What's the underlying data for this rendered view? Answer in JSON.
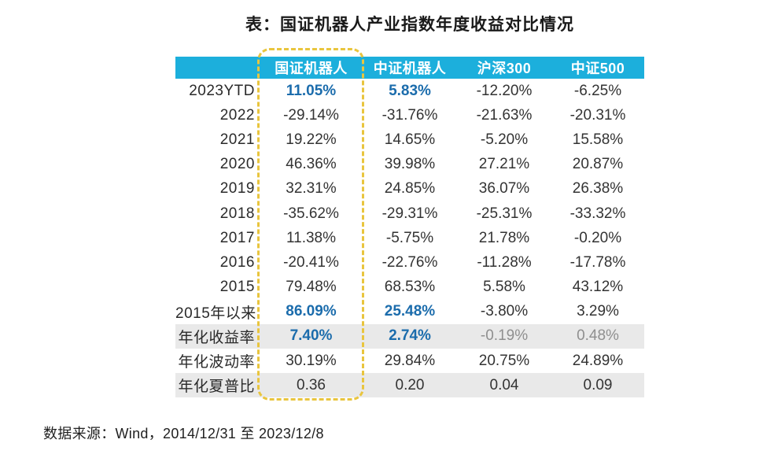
{
  "source_note": "数据来源：Wind，2014/12/31 至 2023/12/8",
  "colors": {
    "header_bg": "#1cafdc",
    "header_text": "#ffffff",
    "highlight_text": "#1b6cac",
    "muted_text": "#8f8f8f",
    "shaded_row_bg": "#e9e9e9",
    "dashed_border": "#e9c53e",
    "body_text": "#2e2e2e"
  },
  "chart_data": {
    "type": "table",
    "title": "表：国证机器人产业指数年度收益对比情况",
    "columns": [
      "国证机器人",
      "中证机器人",
      "沪深300",
      "中证500"
    ],
    "highlighted_column": "国证机器人",
    "rows": [
      {
        "label": "2023YTD",
        "values": [
          "11.05%",
          "5.83%",
          "-12.20%",
          "-6.25%"
        ],
        "emphasis": [
          true,
          true,
          false,
          false
        ],
        "shaded": false
      },
      {
        "label": "2022",
        "values": [
          "-29.14%",
          "-31.76%",
          "-21.63%",
          "-20.31%"
        ],
        "emphasis": [
          false,
          false,
          false,
          false
        ],
        "shaded": false
      },
      {
        "label": "2021",
        "values": [
          "19.22%",
          "14.65%",
          "-5.20%",
          "15.58%"
        ],
        "emphasis": [
          false,
          false,
          false,
          false
        ],
        "shaded": false
      },
      {
        "label": "2020",
        "values": [
          "46.36%",
          "39.98%",
          "27.21%",
          "20.87%"
        ],
        "emphasis": [
          false,
          false,
          false,
          false
        ],
        "shaded": false
      },
      {
        "label": "2019",
        "values": [
          "32.31%",
          "24.85%",
          "36.07%",
          "26.38%"
        ],
        "emphasis": [
          false,
          false,
          false,
          false
        ],
        "shaded": false
      },
      {
        "label": "2018",
        "values": [
          "-35.62%",
          "-29.31%",
          "-25.31%",
          "-33.32%"
        ],
        "emphasis": [
          false,
          false,
          false,
          false
        ],
        "shaded": false
      },
      {
        "label": "2017",
        "values": [
          "11.38%",
          "-5.75%",
          "21.78%",
          "-0.20%"
        ],
        "emphasis": [
          false,
          false,
          false,
          false
        ],
        "shaded": false
      },
      {
        "label": "2016",
        "values": [
          "-20.41%",
          "-22.76%",
          "-11.28%",
          "-17.78%"
        ],
        "emphasis": [
          false,
          false,
          false,
          false
        ],
        "shaded": false
      },
      {
        "label": "2015",
        "values": [
          "79.48%",
          "68.53%",
          "5.58%",
          "43.12%"
        ],
        "emphasis": [
          false,
          false,
          false,
          false
        ],
        "shaded": false
      },
      {
        "label": "2015年以来",
        "values": [
          "86.09%",
          "25.48%",
          "-3.80%",
          "3.29%"
        ],
        "emphasis": [
          true,
          true,
          false,
          false
        ],
        "shaded": false
      },
      {
        "label": "年化收益率",
        "values": [
          "7.40%",
          "2.74%",
          "-0.19%",
          "0.48%"
        ],
        "emphasis": [
          true,
          true,
          false,
          false
        ],
        "muted": [
          false,
          false,
          true,
          true
        ],
        "shaded": true
      },
      {
        "label": "年化波动率",
        "values": [
          "30.19%",
          "29.84%",
          "20.75%",
          "24.89%"
        ],
        "emphasis": [
          false,
          false,
          false,
          false
        ],
        "shaded": false
      },
      {
        "label": "年化夏普比",
        "values": [
          "0.36",
          "0.20",
          "0.04",
          "0.09"
        ],
        "emphasis": [
          false,
          false,
          false,
          false
        ],
        "shaded": true
      }
    ]
  }
}
